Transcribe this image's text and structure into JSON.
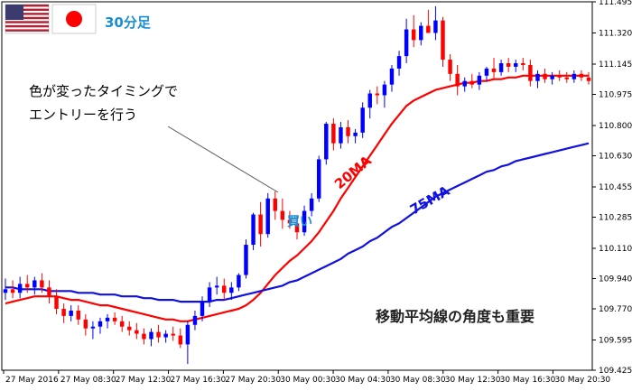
{
  "chart_data": {
    "type": "candlestick",
    "timeframe_label": "30分足",
    "x_tick_labels": [
      "27 May 2016",
      "27 May 08:30",
      "27 May 12:30",
      "27 May 16:30",
      "27 May 20:30",
      "30 May 00:30",
      "30 May 04:30",
      "30 May 08:30",
      "30 May 12:30",
      "30 May 16:30",
      "30 May 20:30"
    ],
    "y_tick_labels": [
      "111.495",
      "111.320",
      "111.145",
      "110.975",
      "110.800",
      "110.630",
      "110.455",
      "110.285",
      "110.110",
      "109.940",
      "109.770",
      "109.595",
      "109.425"
    ],
    "ylim": [
      109.425,
      111.495
    ],
    "bull_color": "#0000ff",
    "bear_color": "#ff0000",
    "candles": [
      [
        109.86,
        109.94,
        109.82,
        109.88
      ],
      [
        109.88,
        109.93,
        109.83,
        109.86
      ],
      [
        109.86,
        109.95,
        109.83,
        109.91
      ],
      [
        109.91,
        109.96,
        109.86,
        109.89
      ],
      [
        109.89,
        109.95,
        109.85,
        109.93
      ],
      [
        109.93,
        109.97,
        109.86,
        109.89
      ],
      [
        109.89,
        109.93,
        109.8,
        109.84
      ],
      [
        109.84,
        109.88,
        109.74,
        109.77
      ],
      [
        109.77,
        109.8,
        109.69,
        109.73
      ],
      [
        109.73,
        109.79,
        109.7,
        109.76
      ],
      [
        109.76,
        109.79,
        109.68,
        109.71
      ],
      [
        109.71,
        109.74,
        109.62,
        109.66
      ],
      [
        109.66,
        109.7,
        109.6,
        109.67
      ],
      [
        109.67,
        109.72,
        109.63,
        109.7
      ],
      [
        109.7,
        109.74,
        109.66,
        109.72
      ],
      [
        109.72,
        109.75,
        109.68,
        109.7
      ],
      [
        109.7,
        109.73,
        109.64,
        109.67
      ],
      [
        109.67,
        109.7,
        109.62,
        109.65
      ],
      [
        109.65,
        109.69,
        109.6,
        109.63
      ],
      [
        109.63,
        109.66,
        109.57,
        109.6
      ],
      [
        109.6,
        109.66,
        109.56,
        109.64
      ],
      [
        109.64,
        109.68,
        109.58,
        109.61
      ],
      [
        109.61,
        109.65,
        109.58,
        109.63
      ],
      [
        109.63,
        109.67,
        109.59,
        109.62
      ],
      [
        109.62,
        109.66,
        109.55,
        109.57
      ],
      [
        109.57,
        109.7,
        109.46,
        109.68
      ],
      [
        109.68,
        109.76,
        109.65,
        109.73
      ],
      [
        109.73,
        109.84,
        109.7,
        109.81
      ],
      [
        109.81,
        109.92,
        109.78,
        109.89
      ],
      [
        109.89,
        109.95,
        109.85,
        109.9
      ],
      [
        109.9,
        109.94,
        109.82,
        109.86
      ],
      [
        109.86,
        109.92,
        109.82,
        109.89
      ],
      [
        109.89,
        109.97,
        109.87,
        109.96
      ],
      [
        109.96,
        110.16,
        109.94,
        110.13
      ],
      [
        110.13,
        110.31,
        110.1,
        110.3
      ],
      [
        110.3,
        110.37,
        110.12,
        110.19
      ],
      [
        110.19,
        110.42,
        110.17,
        110.39
      ],
      [
        110.39,
        110.43,
        110.27,
        110.32
      ],
      [
        110.32,
        110.39,
        110.22,
        110.27
      ],
      [
        110.27,
        110.32,
        110.22,
        110.25
      ],
      [
        110.25,
        110.29,
        110.16,
        110.2
      ],
      [
        110.2,
        110.35,
        110.18,
        110.32
      ],
      [
        110.32,
        110.42,
        110.29,
        110.39
      ],
      [
        110.39,
        110.63,
        110.37,
        110.61
      ],
      [
        110.61,
        110.82,
        110.58,
        110.81
      ],
      [
        110.81,
        110.84,
        110.66,
        110.7
      ],
      [
        110.7,
        110.82,
        110.67,
        110.79
      ],
      [
        110.79,
        110.83,
        110.7,
        110.74
      ],
      [
        110.74,
        110.78,
        110.7,
        110.76
      ],
      [
        110.76,
        110.93,
        110.73,
        110.9
      ],
      [
        110.9,
        111.0,
        110.84,
        110.98
      ],
      [
        110.98,
        111.02,
        110.92,
        110.97
      ],
      [
        110.97,
        111.05,
        110.9,
        111.03
      ],
      [
        111.03,
        111.14,
        110.99,
        111.12
      ],
      [
        111.12,
        111.22,
        111.08,
        111.19
      ],
      [
        111.19,
        111.4,
        111.15,
        111.34
      ],
      [
        111.34,
        111.42,
        111.24,
        111.28
      ],
      [
        111.28,
        111.38,
        111.25,
        111.36
      ],
      [
        111.36,
        111.45,
        111.33,
        111.32
      ],
      [
        111.32,
        111.47,
        111.28,
        111.39
      ],
      [
        111.39,
        111.41,
        111.13,
        111.17
      ],
      [
        111.17,
        111.2,
        111.05,
        111.09
      ],
      [
        111.09,
        111.14,
        110.97,
        111.02
      ],
      [
        111.02,
        111.07,
        110.99,
        111.05
      ],
      [
        111.05,
        111.09,
        111.01,
        111.03
      ],
      [
        111.03,
        111.1,
        111.0,
        111.08
      ],
      [
        111.08,
        111.13,
        111.05,
        111.12
      ],
      [
        111.12,
        111.18,
        111.06,
        111.1
      ],
      [
        111.1,
        111.17,
        111.08,
        111.15
      ],
      [
        111.15,
        111.18,
        111.1,
        111.13
      ],
      [
        111.13,
        111.17,
        111.1,
        111.15
      ],
      [
        111.15,
        111.18,
        111.11,
        111.14
      ],
      [
        111.14,
        111.17,
        111.02,
        111.05
      ],
      [
        111.05,
        111.11,
        111.01,
        111.09
      ],
      [
        111.09,
        111.12,
        111.04,
        111.06
      ],
      [
        111.06,
        111.1,
        111.03,
        111.08
      ],
      [
        111.08,
        111.11,
        111.05,
        111.07
      ],
      [
        111.07,
        111.1,
        111.04,
        111.06
      ],
      [
        111.06,
        111.11,
        111.04,
        111.09
      ],
      [
        111.09,
        111.11,
        111.05,
        111.07
      ],
      [
        111.07,
        111.1,
        111.03,
        111.05
      ]
    ],
    "series": [
      {
        "name": "20MA",
        "color": "#ff0000",
        "values": [
          109.8,
          109.81,
          109.82,
          109.83,
          109.84,
          109.84,
          109.84,
          109.84,
          109.83,
          109.82,
          109.82,
          109.81,
          109.8,
          109.79,
          109.79,
          109.78,
          109.77,
          109.76,
          109.75,
          109.74,
          109.73,
          109.72,
          109.71,
          109.71,
          109.7,
          109.7,
          109.71,
          109.72,
          109.73,
          109.74,
          109.75,
          109.76,
          109.77,
          109.79,
          109.82,
          109.86,
          109.91,
          109.96,
          110.0,
          110.04,
          110.07,
          110.11,
          110.15,
          110.2,
          110.26,
          110.32,
          110.39,
          110.45,
          110.51,
          110.57,
          110.63,
          110.69,
          110.75,
          110.81,
          110.86,
          110.91,
          110.94,
          110.96,
          110.98,
          111.0,
          111.01,
          111.02,
          111.03,
          111.04,
          111.04,
          111.05,
          111.05,
          111.06,
          111.06,
          111.07,
          111.07,
          111.08,
          111.08,
          111.08,
          111.08,
          111.08,
          111.08,
          111.08,
          111.08,
          111.08,
          111.08
        ]
      },
      {
        "name": "75MA",
        "color": "#1010e0",
        "values": [
          109.89,
          109.89,
          109.88,
          109.88,
          109.88,
          109.88,
          109.87,
          109.87,
          109.87,
          109.87,
          109.86,
          109.86,
          109.86,
          109.85,
          109.85,
          109.85,
          109.84,
          109.84,
          109.84,
          109.83,
          109.83,
          109.82,
          109.82,
          109.82,
          109.81,
          109.81,
          109.81,
          109.81,
          109.81,
          109.82,
          109.82,
          109.83,
          109.84,
          109.85,
          109.86,
          109.87,
          109.88,
          109.89,
          109.9,
          109.92,
          109.93,
          109.95,
          109.97,
          109.99,
          110.01,
          110.03,
          110.05,
          110.08,
          110.1,
          110.12,
          110.15,
          110.17,
          110.2,
          110.23,
          110.25,
          110.28,
          110.31,
          110.34,
          110.37,
          110.4,
          110.42,
          110.44,
          110.46,
          110.48,
          110.5,
          110.52,
          110.54,
          110.55,
          110.57,
          110.58,
          110.6,
          110.61,
          110.62,
          110.63,
          110.64,
          110.65,
          110.66,
          110.67,
          110.68,
          110.69,
          110.7
        ]
      }
    ],
    "annotations": {
      "callout": [
        "色が変ったタイミングで",
        "エントリーを行う"
      ],
      "buy": "買い",
      "note": "移動平均線の角度も重要"
    }
  }
}
